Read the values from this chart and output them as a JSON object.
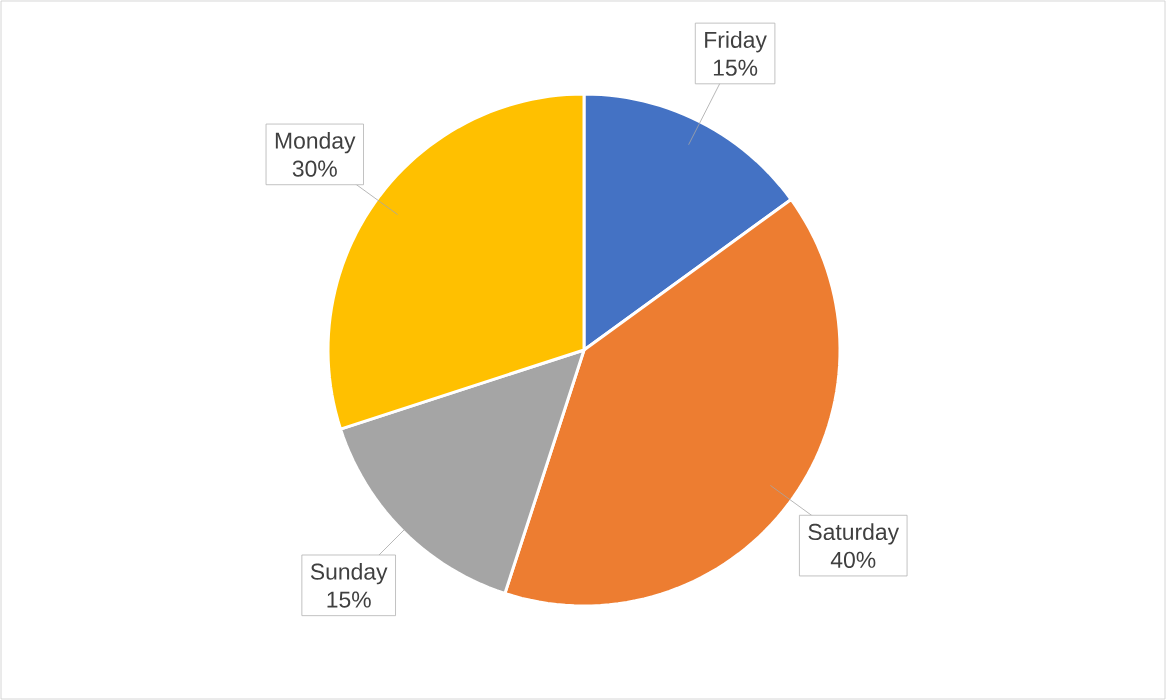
{
  "chart_data": {
    "type": "pie",
    "categories": [
      "Friday",
      "Saturday",
      "Sunday",
      "Monday"
    ],
    "values": [
      15,
      40,
      15,
      30
    ],
    "value_labels": [
      "15%",
      "40%",
      "15%",
      "30%"
    ],
    "colors": [
      "#4472c4",
      "#ed7d31",
      "#a5a5a5",
      "#ffc000"
    ]
  }
}
